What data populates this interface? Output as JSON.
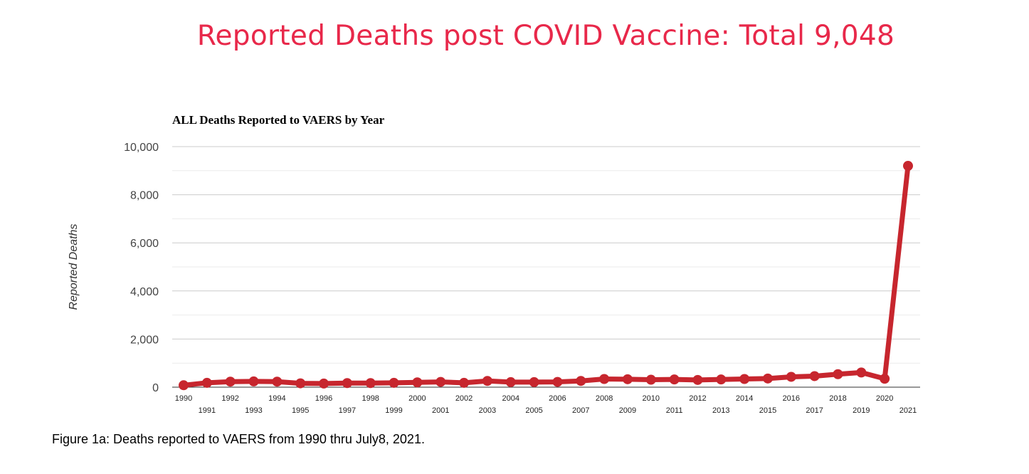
{
  "heading": "Reported Deaths post COVID Vaccine: Total 9,048",
  "caption": "Figure 1a: Deaths reported to VAERS from 1990 thru July8, 2021.",
  "colors": {
    "heading": "#e8284a",
    "series": "#c7262e",
    "grid": "#d9d9d9",
    "axis": "#333333"
  },
  "chart_data": {
    "type": "line",
    "title": "ALL Deaths Reported to VAERS by Year",
    "ylabel": "Reported Deaths",
    "xlabel": "",
    "ylim": [
      0,
      10000
    ],
    "yticks": [
      0,
      2000,
      4000,
      6000,
      8000,
      10000
    ],
    "ytick_labels": [
      "0",
      "2,000",
      "4,000",
      "6,000",
      "8,000",
      "10,000"
    ],
    "grid": true,
    "legend": "none",
    "x": [
      "1990",
      "1991",
      "1992",
      "1993",
      "1994",
      "1995",
      "1996",
      "1997",
      "1998",
      "1999",
      "2000",
      "2001",
      "2002",
      "2003",
      "2004",
      "2005",
      "2006",
      "2007",
      "2008",
      "2009",
      "2010",
      "2011",
      "2012",
      "2013",
      "2014",
      "2015",
      "2016",
      "2017",
      "2018",
      "2019",
      "2020",
      "2021"
    ],
    "series": [
      {
        "values": [
          80,
          180,
          230,
          240,
          230,
          160,
          150,
          170,
          170,
          180,
          200,
          220,
          180,
          260,
          210,
          210,
          220,
          260,
          340,
          330,
          310,
          320,
          300,
          320,
          340,
          360,
          430,
          460,
          540,
          610,
          350,
          9200
        ]
      }
    ]
  }
}
